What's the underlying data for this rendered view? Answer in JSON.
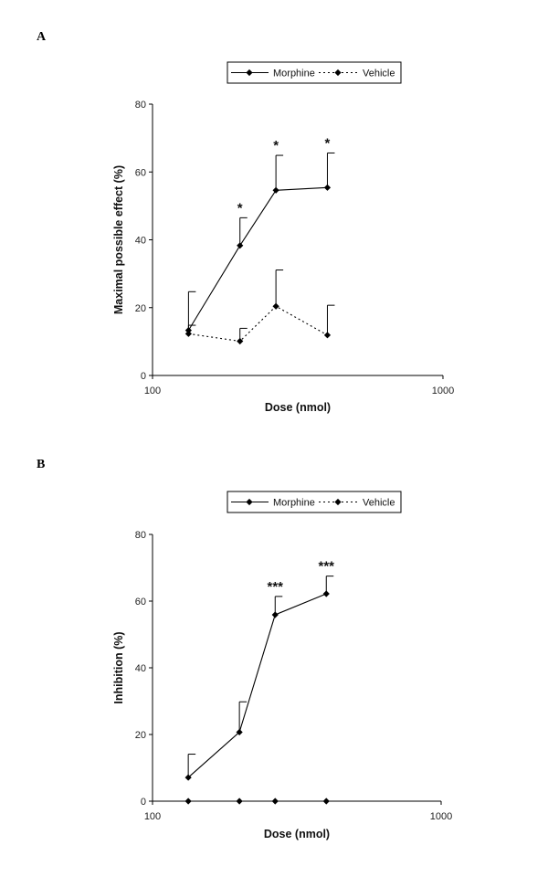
{
  "chart_data": [
    {
      "type": "line",
      "panel_label": "A",
      "xlabel": "Dose (nmol)",
      "ylabel": "Maximal possible effect (%)",
      "x_scale": "log",
      "xlim": [
        100,
        1000
      ],
      "ylim": [
        0,
        80
      ],
      "x_ticks": [
        "100",
        "1000"
      ],
      "y_ticks": [
        "0",
        "20",
        "40",
        "60",
        "80"
      ],
      "grid": false,
      "legend_position": "top",
      "x": [
        133,
        200,
        266,
        400
      ],
      "series": [
        {
          "name": "Morphine",
          "line": "solid",
          "values": [
            13.3,
            38.3,
            54.6,
            55.4
          ],
          "error_upper": [
            24.7,
            46.5,
            64.9,
            65.6
          ],
          "annotations": [
            "",
            "*",
            "*",
            "*"
          ]
        },
        {
          "name": "Vehicle",
          "line": "dotted",
          "values": [
            12.3,
            10.1,
            20.4,
            11.9
          ],
          "error_upper": [
            14.8,
            13.9,
            31.1,
            20.7
          ],
          "annotations": [
            "",
            "",
            "",
            ""
          ]
        }
      ]
    },
    {
      "type": "line",
      "panel_label": "B",
      "xlabel": "Dose (nmol)",
      "ylabel": "Inhibition (%)",
      "x_scale": "log",
      "xlim": [
        100,
        1000
      ],
      "ylim": [
        0,
        80
      ],
      "x_ticks": [
        "100",
        "1000"
      ],
      "y_ticks": [
        "0",
        "20",
        "40",
        "60",
        "80"
      ],
      "grid": false,
      "legend_position": "top",
      "x": [
        133,
        200,
        266,
        400
      ],
      "series": [
        {
          "name": "Morphine",
          "line": "solid",
          "values": [
            7.1,
            20.7,
            55.9,
            62.2
          ],
          "error_upper": [
            14.1,
            29.8,
            61.4,
            67.5
          ],
          "annotations": [
            "",
            "",
            "***",
            "***"
          ]
        },
        {
          "name": "Vehicle",
          "line": "dotted",
          "values": [
            0,
            0,
            0,
            0
          ],
          "error_upper": [
            null,
            null,
            null,
            null
          ],
          "annotations": [
            "",
            "",
            "",
            ""
          ]
        }
      ]
    }
  ]
}
